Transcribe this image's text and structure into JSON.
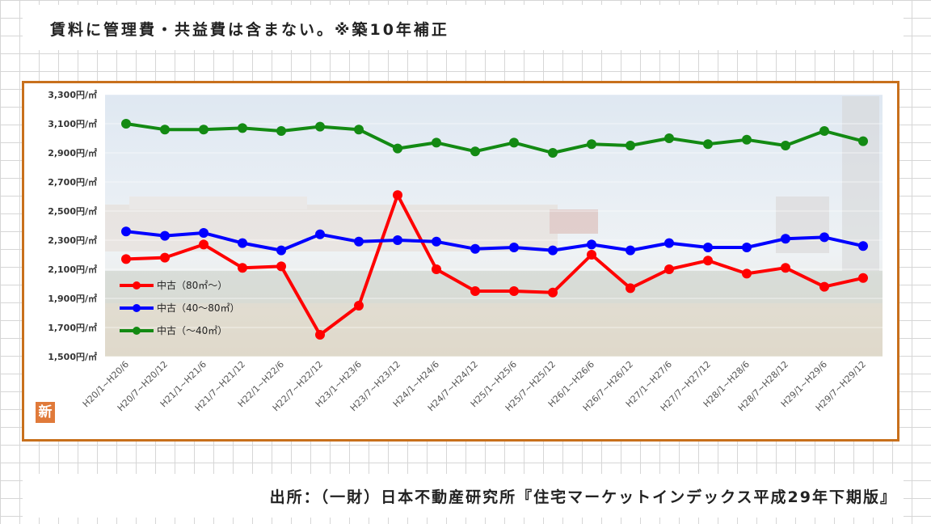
{
  "header": {
    "note": "賃料に管理費・共益費は含まない。※築10年補正"
  },
  "footer": {
    "source": "出所：（一財）日本不動産研究所『住宅マーケットインデックス平成29年下期版』"
  },
  "badge": {
    "label": "新"
  },
  "chart_data": {
    "type": "line",
    "categories": [
      "H20/1~H20/6",
      "H20/7~H20/12",
      "H21/1~H21/6",
      "H21/7~H21/12",
      "H22/1~H22/6",
      "H22/7~H22/12",
      "H23/1~H23/6",
      "H23/7~H23/12",
      "H24/1~H24/6",
      "H24/7~H24/12",
      "H25/1~H25/6",
      "H25/7~H25/12",
      "H26/1~H26/6",
      "H26/7~H26/12",
      "H27/1~H27/6",
      "H27/7~H27/12",
      "H28/1~H28/6",
      "H28/7~H28/12",
      "H29/1~H29/6",
      "H29/7~H29/12"
    ],
    "ylim": [
      1500,
      3300
    ],
    "yticks": [
      {
        "value": 3300,
        "label": "3,300円/㎡"
      },
      {
        "value": 3100,
        "label": "3,100円/㎡"
      },
      {
        "value": 2900,
        "label": "2,900円/㎡"
      },
      {
        "value": 2700,
        "label": "2,700円/㎡"
      },
      {
        "value": 2500,
        "label": "2,500円/㎡"
      },
      {
        "value": 2300,
        "label": "2,300円/㎡"
      },
      {
        "value": 2100,
        "label": "2,100円/㎡"
      },
      {
        "value": 1900,
        "label": "1,900円/㎡"
      },
      {
        "value": 1700,
        "label": "1,700円/㎡"
      },
      {
        "value": 1500,
        "label": "1,500円/㎡"
      }
    ],
    "legend_position": "left",
    "series": [
      {
        "name": "中古（80㎡～）",
        "color": "#ff0000",
        "values": [
          2170,
          2180,
          2270,
          2110,
          2120,
          1650,
          1850,
          2610,
          2100,
          1950,
          1950,
          1940,
          2200,
          1970,
          2100,
          2160,
          2070,
          2110,
          1980,
          2040
        ]
      },
      {
        "name": "中古（40～80㎡）",
        "color": "#0000ff",
        "values": [
          2360,
          2330,
          2350,
          2280,
          2230,
          2340,
          2290,
          2300,
          2290,
          2240,
          2250,
          2230,
          2270,
          2230,
          2280,
          2250,
          2250,
          2310,
          2320,
          2260
        ]
      },
      {
        "name": "中古（～40㎡）",
        "color": "#138a13",
        "values": [
          3100,
          3060,
          3060,
          3070,
          3050,
          3080,
          3060,
          2930,
          2970,
          2910,
          2970,
          2900,
          2960,
          2950,
          3000,
          2960,
          2990,
          2950,
          3050,
          2980
        ]
      }
    ]
  }
}
